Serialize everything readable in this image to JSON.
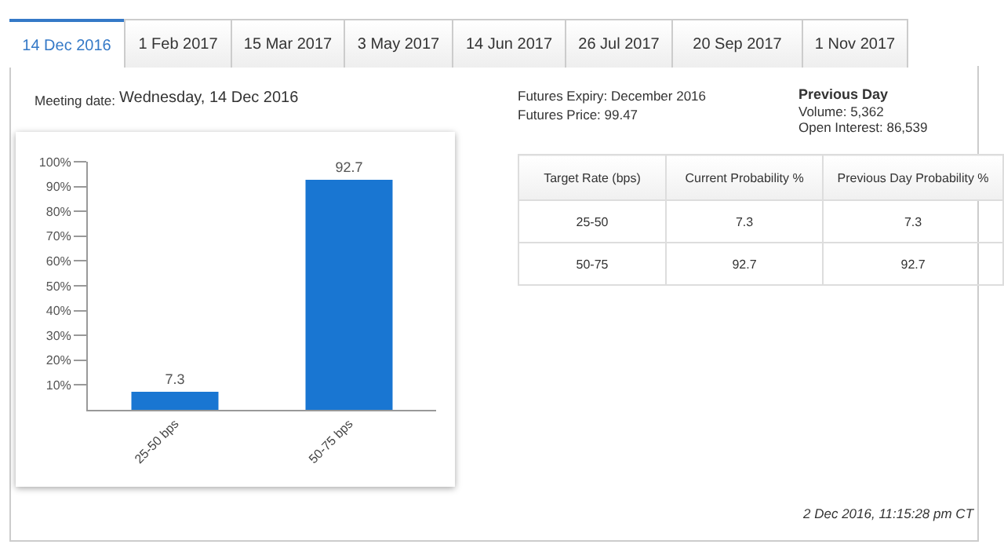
{
  "chart_data": {
    "type": "bar",
    "categories": [
      "25-50 bps",
      "50-75 bps"
    ],
    "values": [
      7.3,
      92.7
    ],
    "color": "#1976d2",
    "ylim": [
      0,
      100
    ],
    "yticks": [
      {
        "value": 10,
        "label": "10%"
      },
      {
        "value": 20,
        "label": "20%"
      },
      {
        "value": 30,
        "label": "30%"
      },
      {
        "value": 40,
        "label": "40%"
      },
      {
        "value": 50,
        "label": "50%"
      },
      {
        "value": 60,
        "label": "60%"
      },
      {
        "value": 70,
        "label": "70%"
      },
      {
        "value": 80,
        "label": "80%"
      },
      {
        "value": 90,
        "label": "90%"
      },
      {
        "value": 100,
        "label": "100%"
      }
    ],
    "grid": false,
    "data_labels": true,
    "annotations": [
      "14 Dec 2016",
      "1 Feb 2017",
      "15 Mar 2017",
      "3 May 2017",
      "14 Jun 2017",
      "26 Jul 2017",
      "20 Sep 2017",
      "1 Nov 2017",
      "Meeting date:",
      "Wednesday, 14 Dec 2016",
      "Futures Expiry: December 2016",
      "Futures Price: 99.47",
      "Previous Day",
      "Volume: 5,362",
      "Open Interest: 86,539",
      "Target Rate (bps)",
      "Current Probability %",
      "Previous Day Probability %",
      "25-50",
      "7.3",
      "7.3",
      "50-75",
      "92.7",
      "92.7",
      "2 Dec 2016, 11:15:28 pm CT"
    ]
  }
}
